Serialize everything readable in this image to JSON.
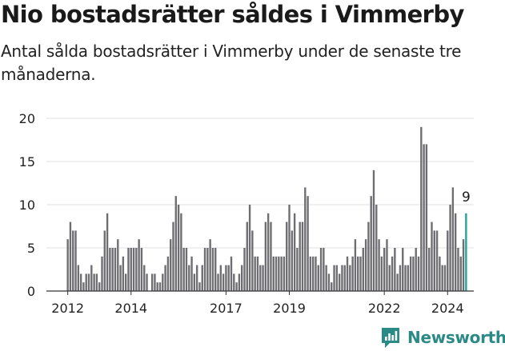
{
  "title": "Nio bostadsrätter såldes i Vimmerby",
  "subtitle": "Antal sålda bostadsrätter i Vimmerby under de senaste tre månaderna.",
  "brand": "Newsworthy",
  "colors": {
    "bar": "#6e6d72",
    "highlight": "#22a39a",
    "brand": "#2a8a86",
    "grid": "#e1e1e1"
  },
  "chart_data": {
    "type": "bar",
    "title": "Nio bostadsrätter såldes i Vimmerby",
    "subtitle": "Antal sålda bostadsrätter i Vimmerby under de senaste tre månaderna.",
    "xlabel": "",
    "ylabel": "",
    "ylim": [
      0,
      20
    ],
    "yticks": [
      0,
      5,
      10,
      15,
      20
    ],
    "x_start": "2012-01",
    "x_ticks": [
      "2012",
      "2014",
      "2017",
      "2019",
      "2022",
      "2024"
    ],
    "grid": true,
    "highlight_label": "9",
    "values": [
      6,
      8,
      7,
      7,
      3,
      2,
      1,
      2,
      2,
      3,
      2,
      2,
      1,
      4,
      7,
      9,
      5,
      5,
      5,
      6,
      3,
      4,
      2,
      5,
      5,
      5,
      5,
      6,
      5,
      3,
      2,
      0,
      2,
      2,
      1,
      1,
      2,
      3,
      4,
      6,
      8,
      11,
      10,
      9,
      5,
      5,
      3,
      4,
      2,
      3,
      1,
      3,
      5,
      5,
      6,
      5,
      5,
      2,
      3,
      2,
      3,
      3,
      4,
      2,
      1,
      2,
      3,
      5,
      8,
      10,
      7,
      4,
      4,
      3,
      3,
      8,
      9,
      8,
      4,
      4,
      4,
      4,
      4,
      8,
      10,
      7,
      9,
      5,
      8,
      8,
      12,
      11,
      4,
      4,
      4,
      3,
      5,
      5,
      3,
      2,
      1,
      3,
      3,
      2,
      3,
      3,
      4,
      3,
      4,
      6,
      4,
      4,
      5,
      6,
      8,
      11,
      14,
      10,
      6,
      4,
      5,
      6,
      3,
      4,
      5,
      2,
      3,
      5,
      3,
      3,
      4,
      4,
      5,
      4,
      19,
      17,
      17,
      5,
      8,
      7,
      7,
      4,
      3,
      3,
      7,
      10,
      12,
      9,
      5,
      4,
      6,
      9
    ]
  }
}
